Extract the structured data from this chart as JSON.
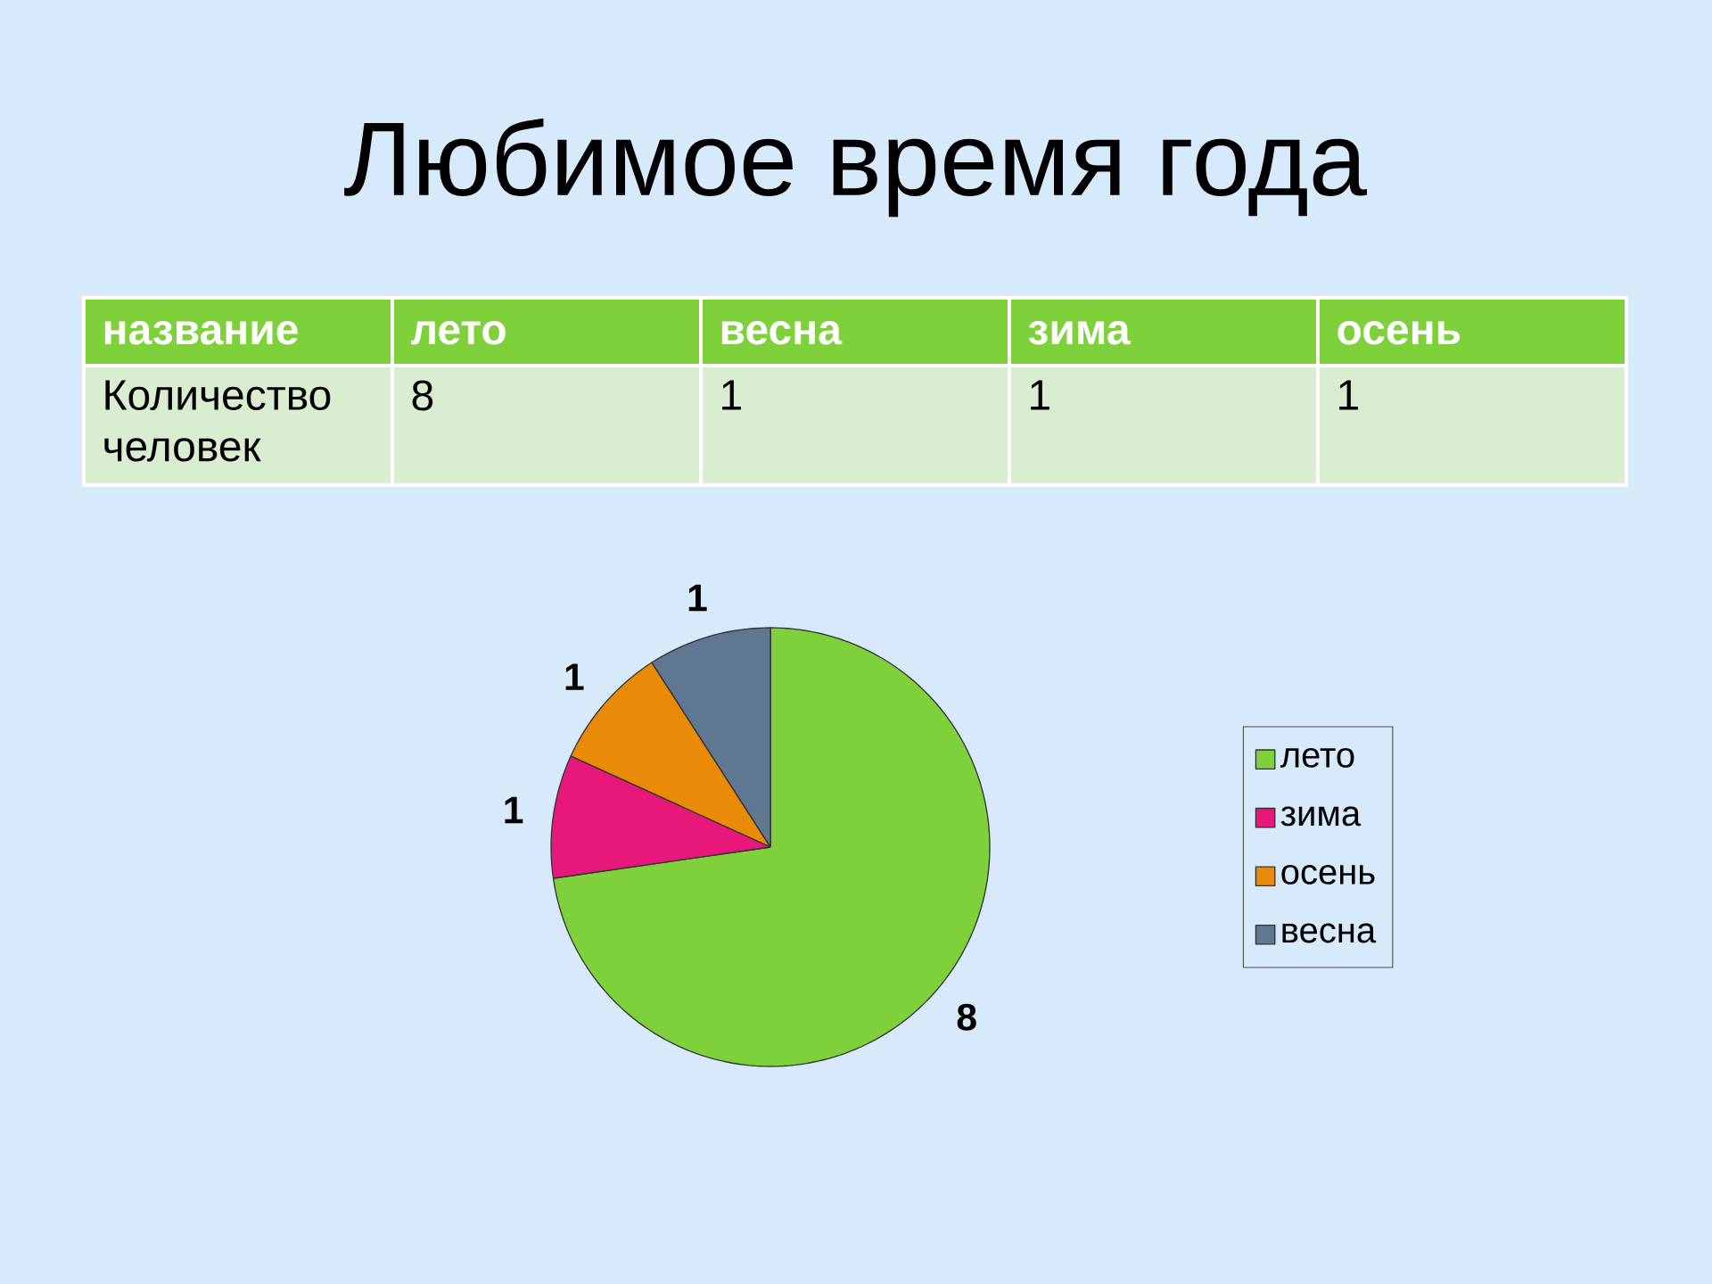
{
  "chart_data": [
    {
      "type": "other",
      "title": "Любимое время года",
      "xlabel": "название",
      "ylabel": "Количество человек",
      "categories": [
        "лето",
        "весна",
        "зима",
        "осень"
      ],
      "values": [
        8,
        1,
        1,
        1
      ],
      "data_labels": true
    },
    {
      "type": "pie",
      "categories": [
        "лето",
        "зима",
        "осень",
        "весна"
      ],
      "values": [
        8,
        1,
        1,
        1
      ],
      "colors": [
        "#7fd13b",
        "#e8177a",
        "#e98a08",
        "#5f7791"
      ],
      "data_labels": true,
      "legend": "right"
    }
  ]
}
